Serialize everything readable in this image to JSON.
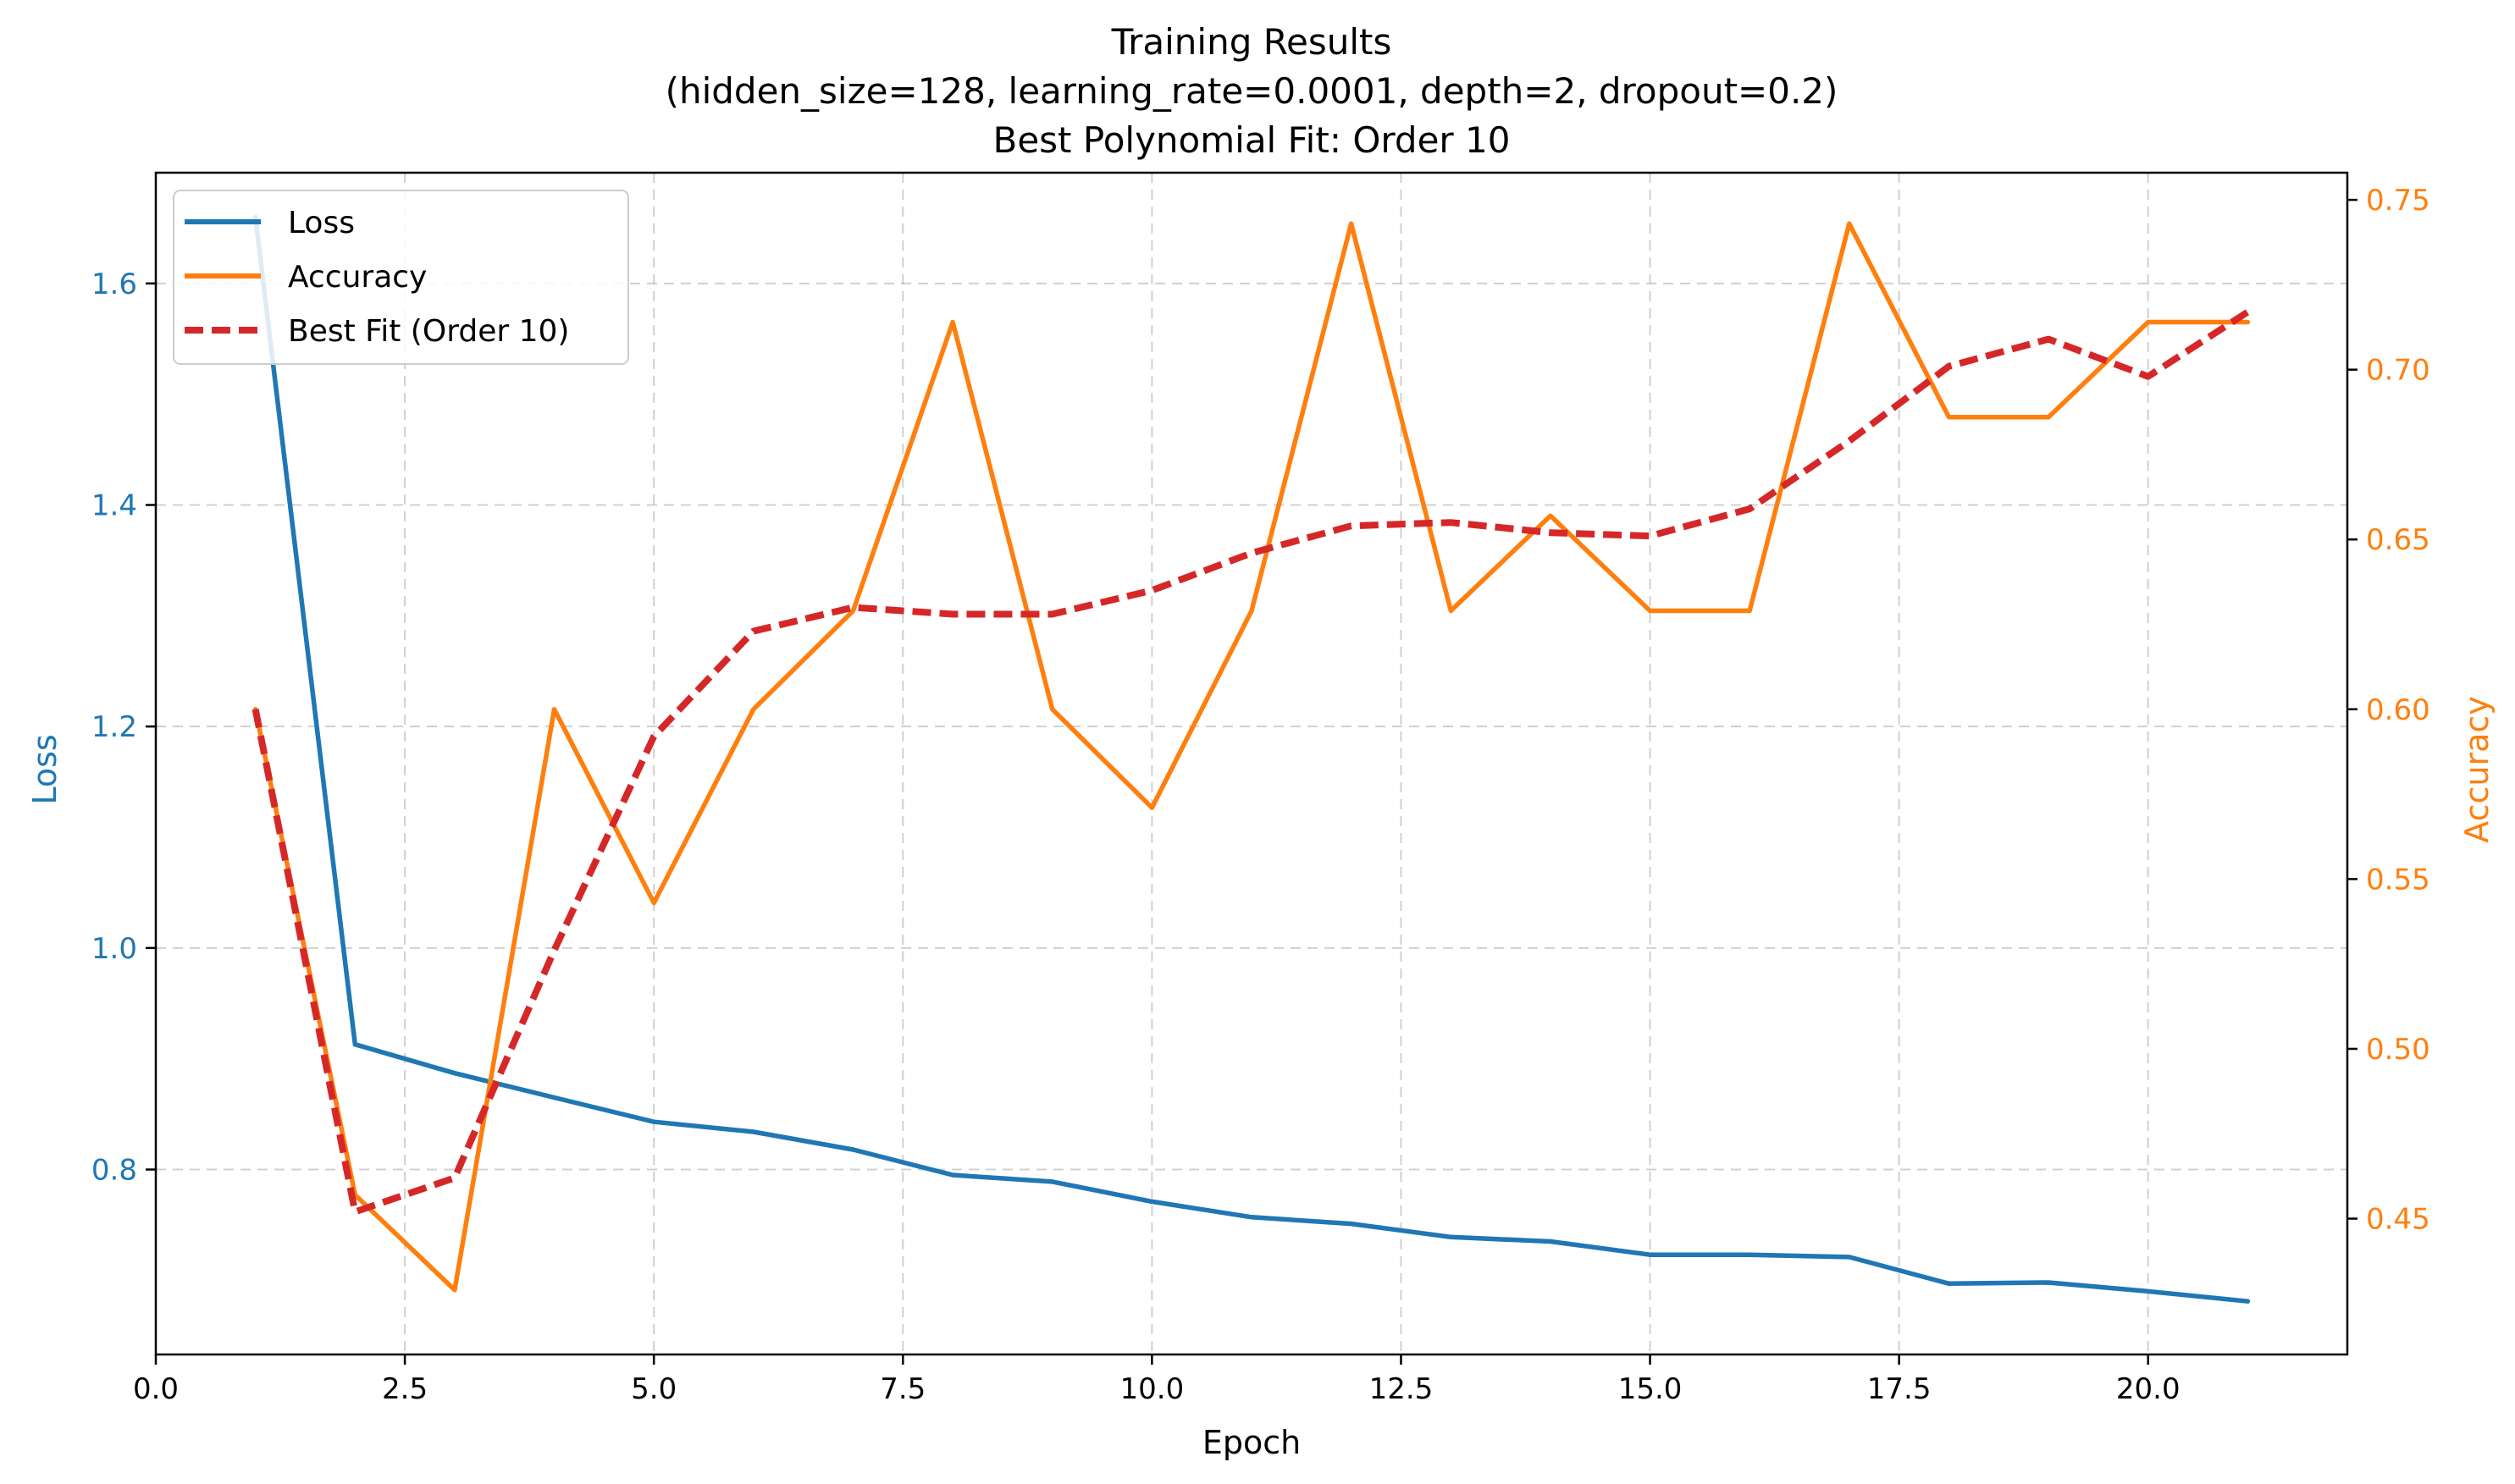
{
  "chart_data": {
    "type": "line",
    "title_lines": [
      "Training Results",
      "(hidden_size=128, learning_rate=0.0001, depth=2, dropout=0.2)",
      "Best Polynomial Fit: Order 10"
    ],
    "xlabel": "Epoch",
    "ylabel_left": "Loss",
    "ylabel_right": "Accuracy",
    "xlim": [
      0,
      22
    ],
    "ylim_left": [
      0.633,
      1.7
    ],
    "ylim_right": [
      0.41,
      0.758
    ],
    "grid": true,
    "legend_position": "top-left",
    "x_ticks": [
      0,
      2.5,
      5,
      7.5,
      10,
      12.5,
      15,
      17.5,
      20
    ],
    "x_tick_labels": [
      "0.0",
      "2.5",
      "5.0",
      "7.5",
      "10.0",
      "12.5",
      "15.0",
      "17.5",
      "20.0"
    ],
    "y_left_ticks": [
      0.8,
      1.0,
      1.2,
      1.4,
      1.6
    ],
    "y_left_tick_labels": [
      "0.8",
      "1.0",
      "1.2",
      "1.4",
      "1.6"
    ],
    "y_right_ticks": [
      0.45,
      0.5,
      0.55,
      0.6,
      0.65,
      0.7,
      0.75
    ],
    "y_right_tick_labels": [
      "0.45",
      "0.50",
      "0.55",
      "0.60",
      "0.65",
      "0.70",
      "0.75"
    ],
    "x": [
      1,
      2,
      3,
      4,
      5,
      6,
      7,
      8,
      9,
      10,
      11,
      12,
      13,
      14,
      15,
      16,
      17,
      18,
      19,
      20,
      21
    ],
    "series": [
      {
        "name": "Loss",
        "axis": "left",
        "color": "#1f77b4",
        "style": "solid",
        "values": [
          1.66,
          0.913,
          0.887,
          0.865,
          0.843,
          0.834,
          0.818,
          0.795,
          0.789,
          0.771,
          0.757,
          0.751,
          0.739,
          0.735,
          0.723,
          0.723,
          0.721,
          0.697,
          0.698,
          0.69,
          0.681
        ]
      },
      {
        "name": "Accuracy",
        "axis": "right",
        "color": "#ff7f0e",
        "style": "solid",
        "values": [
          0.6,
          0.457,
          0.429,
          0.6,
          0.543,
          0.6,
          0.629,
          0.714,
          0.6,
          0.571,
          0.629,
          0.743,
          0.629,
          0.657,
          0.629,
          0.629,
          0.743,
          0.686,
          0.686,
          0.714,
          0.714
        ]
      },
      {
        "name": "Best Fit (Order 10)",
        "axis": "right",
        "color": "#d62728",
        "style": "dashed",
        "values": [
          0.6,
          0.452,
          0.462,
          0.529,
          0.592,
          0.623,
          0.63,
          0.628,
          0.628,
          0.635,
          0.646,
          0.654,
          0.655,
          0.652,
          0.651,
          0.659,
          0.679,
          0.701,
          0.709,
          0.698,
          0.717
        ]
      }
    ]
  }
}
